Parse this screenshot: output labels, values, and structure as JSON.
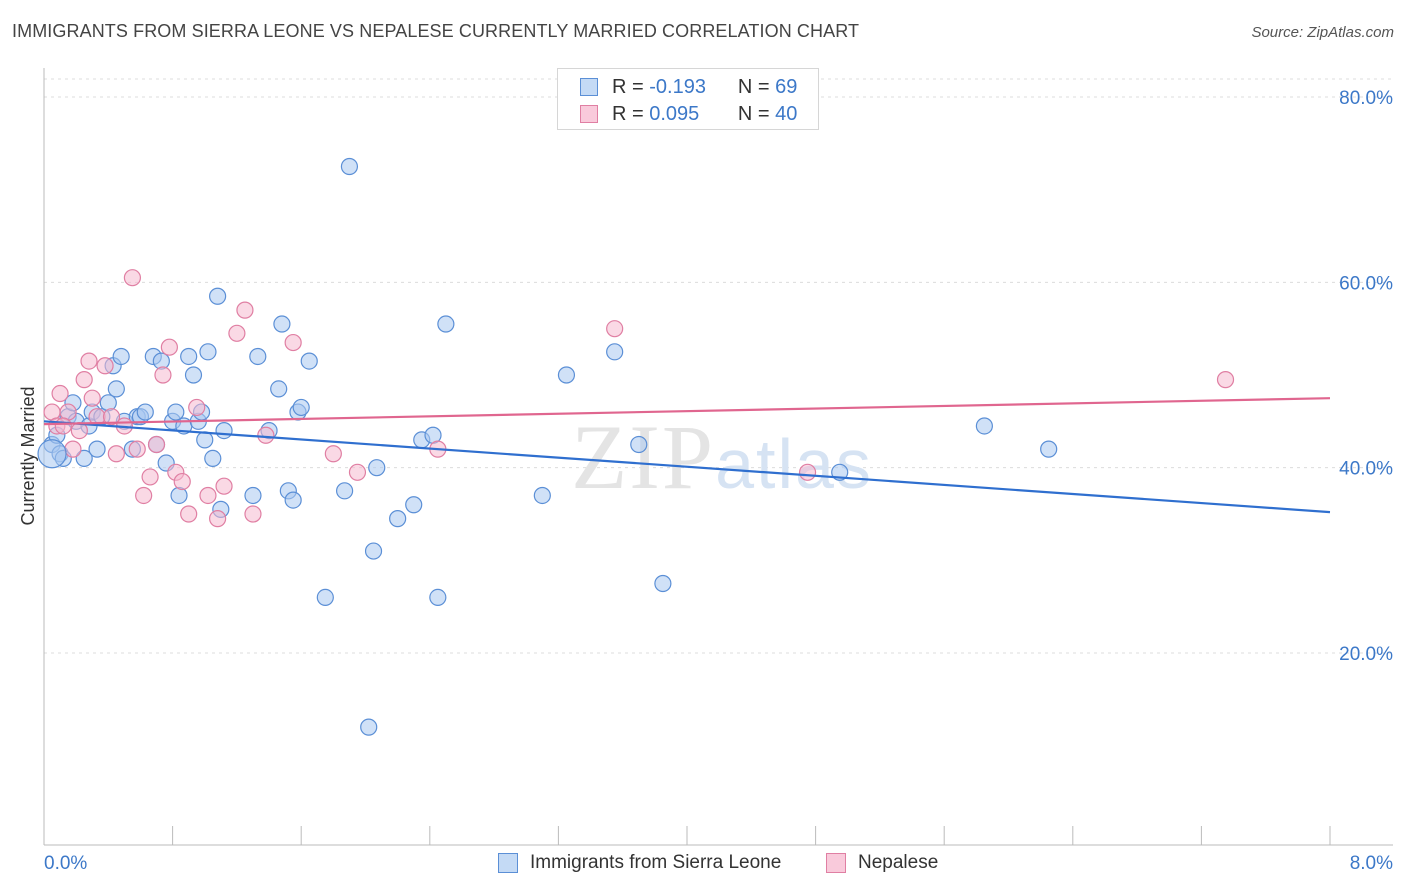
{
  "title": "IMMIGRANTS FROM SIERRA LEONE VS NEPALESE CURRENTLY MARRIED CORRELATION CHART",
  "source": "Source: ZipAtlas.com",
  "watermark": "ZIPatlas",
  "legend_stats": [
    {
      "r_label": "R =",
      "r_value": "-0.193",
      "n_label": "N =",
      "n_value": "69"
    },
    {
      "r_label": "R =",
      "r_value": "0.095",
      "n_label": "N =",
      "n_value": "40"
    }
  ],
  "chart_data": {
    "type": "scatter",
    "ylabel": "Currently Married",
    "xlabel": "",
    "xlim": [
      0,
      8
    ],
    "ylim": [
      0,
      85
    ],
    "x_ticks_labeled": [
      "0.0%",
      "8.0%"
    ],
    "y_ticks": [
      20,
      40,
      60,
      80
    ],
    "y_tick_labels": [
      "20.0%",
      "40.0%",
      "60.0%",
      "80.0%"
    ],
    "grid": true,
    "legend_position": "bottom",
    "series": [
      {
        "name": "Immigrants from Sierra Leone",
        "color": "#a9c8f0",
        "stroke": "#5b8fd6",
        "line_color": "#2f6fcf",
        "trend": [
          [
            0,
            45.0
          ],
          [
            8,
            35.2
          ]
        ],
        "points": [
          [
            0.05,
            42.5
          ],
          [
            0.1,
            41.5
          ],
          [
            0.12,
            41.0
          ],
          [
            0.15,
            45.5
          ],
          [
            0.18,
            47.0
          ],
          [
            0.2,
            45.0
          ],
          [
            0.25,
            41.0
          ],
          [
            0.28,
            44.5
          ],
          [
            0.3,
            46.0
          ],
          [
            0.33,
            42.0
          ],
          [
            0.36,
            45.5
          ],
          [
            0.4,
            47.0
          ],
          [
            0.43,
            51.0
          ],
          [
            0.45,
            48.5
          ],
          [
            0.48,
            52.0
          ],
          [
            0.5,
            45.0
          ],
          [
            0.55,
            42.0
          ],
          [
            0.58,
            45.5
          ],
          [
            0.6,
            45.5
          ],
          [
            0.63,
            46.0
          ],
          [
            0.68,
            52.0
          ],
          [
            0.7,
            42.5
          ],
          [
            0.73,
            51.5
          ],
          [
            0.76,
            40.5
          ],
          [
            0.8,
            45.0
          ],
          [
            0.82,
            46.0
          ],
          [
            0.84,
            37.0
          ],
          [
            0.87,
            44.5
          ],
          [
            0.9,
            52.0
          ],
          [
            0.93,
            50.0
          ],
          [
            0.96,
            45.0
          ],
          [
            0.98,
            46.0
          ],
          [
            1.0,
            43.0
          ],
          [
            1.02,
            52.5
          ],
          [
            1.05,
            41.0
          ],
          [
            1.08,
            58.5
          ],
          [
            1.1,
            35.5
          ],
          [
            1.12,
            44.0
          ],
          [
            1.3,
            37.0
          ],
          [
            1.33,
            52.0
          ],
          [
            1.4,
            44.0
          ],
          [
            1.46,
            48.5
          ],
          [
            1.48,
            55.5
          ],
          [
            1.52,
            37.5
          ],
          [
            1.55,
            36.5
          ],
          [
            1.58,
            46.0
          ],
          [
            1.6,
            46.5
          ],
          [
            1.65,
            51.5
          ],
          [
            1.75,
            26.0
          ],
          [
            1.87,
            37.5
          ],
          [
            1.9,
            72.5
          ],
          [
            2.05,
            31.0
          ],
          [
            2.07,
            40.0
          ],
          [
            2.2,
            34.5
          ],
          [
            2.35,
            43.0
          ],
          [
            2.42,
            43.5
          ],
          [
            2.45,
            26.0
          ],
          [
            2.5,
            55.5
          ],
          [
            2.3,
            36.0
          ],
          [
            2.02,
            12.0
          ],
          [
            3.1,
            37.0
          ],
          [
            3.25,
            50.0
          ],
          [
            3.55,
            52.5
          ],
          [
            3.7,
            42.5
          ],
          [
            3.85,
            27.5
          ],
          [
            4.95,
            39.5
          ],
          [
            5.85,
            44.5
          ],
          [
            6.25,
            42.0
          ],
          [
            0.08,
            43.5
          ]
        ]
      },
      {
        "name": "Nepalese",
        "color": "#f6b9cf",
        "stroke": "#e07fa3",
        "line_color": "#e0668f",
        "trend": [
          [
            0,
            44.7
          ],
          [
            8,
            47.5
          ]
        ],
        "points": [
          [
            0.05,
            46.0
          ],
          [
            0.08,
            44.5
          ],
          [
            0.1,
            48.0
          ],
          [
            0.15,
            46.0
          ],
          [
            0.18,
            42.0
          ],
          [
            0.22,
            44.0
          ],
          [
            0.25,
            49.5
          ],
          [
            0.28,
            51.5
          ],
          [
            0.3,
            47.5
          ],
          [
            0.33,
            45.5
          ],
          [
            0.38,
            51.0
          ],
          [
            0.42,
            45.5
          ],
          [
            0.45,
            41.5
          ],
          [
            0.5,
            44.5
          ],
          [
            0.55,
            60.5
          ],
          [
            0.58,
            42.0
          ],
          [
            0.62,
            37.0
          ],
          [
            0.66,
            39.0
          ],
          [
            0.7,
            42.5
          ],
          [
            0.74,
            50.0
          ],
          [
            0.78,
            53.0
          ],
          [
            0.82,
            39.5
          ],
          [
            0.86,
            38.5
          ],
          [
            0.9,
            35.0
          ],
          [
            0.95,
            46.5
          ],
          [
            1.02,
            37.0
          ],
          [
            1.08,
            34.5
          ],
          [
            1.12,
            38.0
          ],
          [
            1.2,
            54.5
          ],
          [
            1.25,
            57.0
          ],
          [
            1.3,
            35.0
          ],
          [
            1.38,
            43.5
          ],
          [
            1.55,
            53.5
          ],
          [
            1.8,
            41.5
          ],
          [
            1.95,
            39.5
          ],
          [
            2.45,
            42.0
          ],
          [
            3.55,
            55.0
          ],
          [
            4.75,
            39.5
          ],
          [
            7.35,
            49.5
          ],
          [
            0.12,
            44.5
          ]
        ]
      }
    ]
  }
}
